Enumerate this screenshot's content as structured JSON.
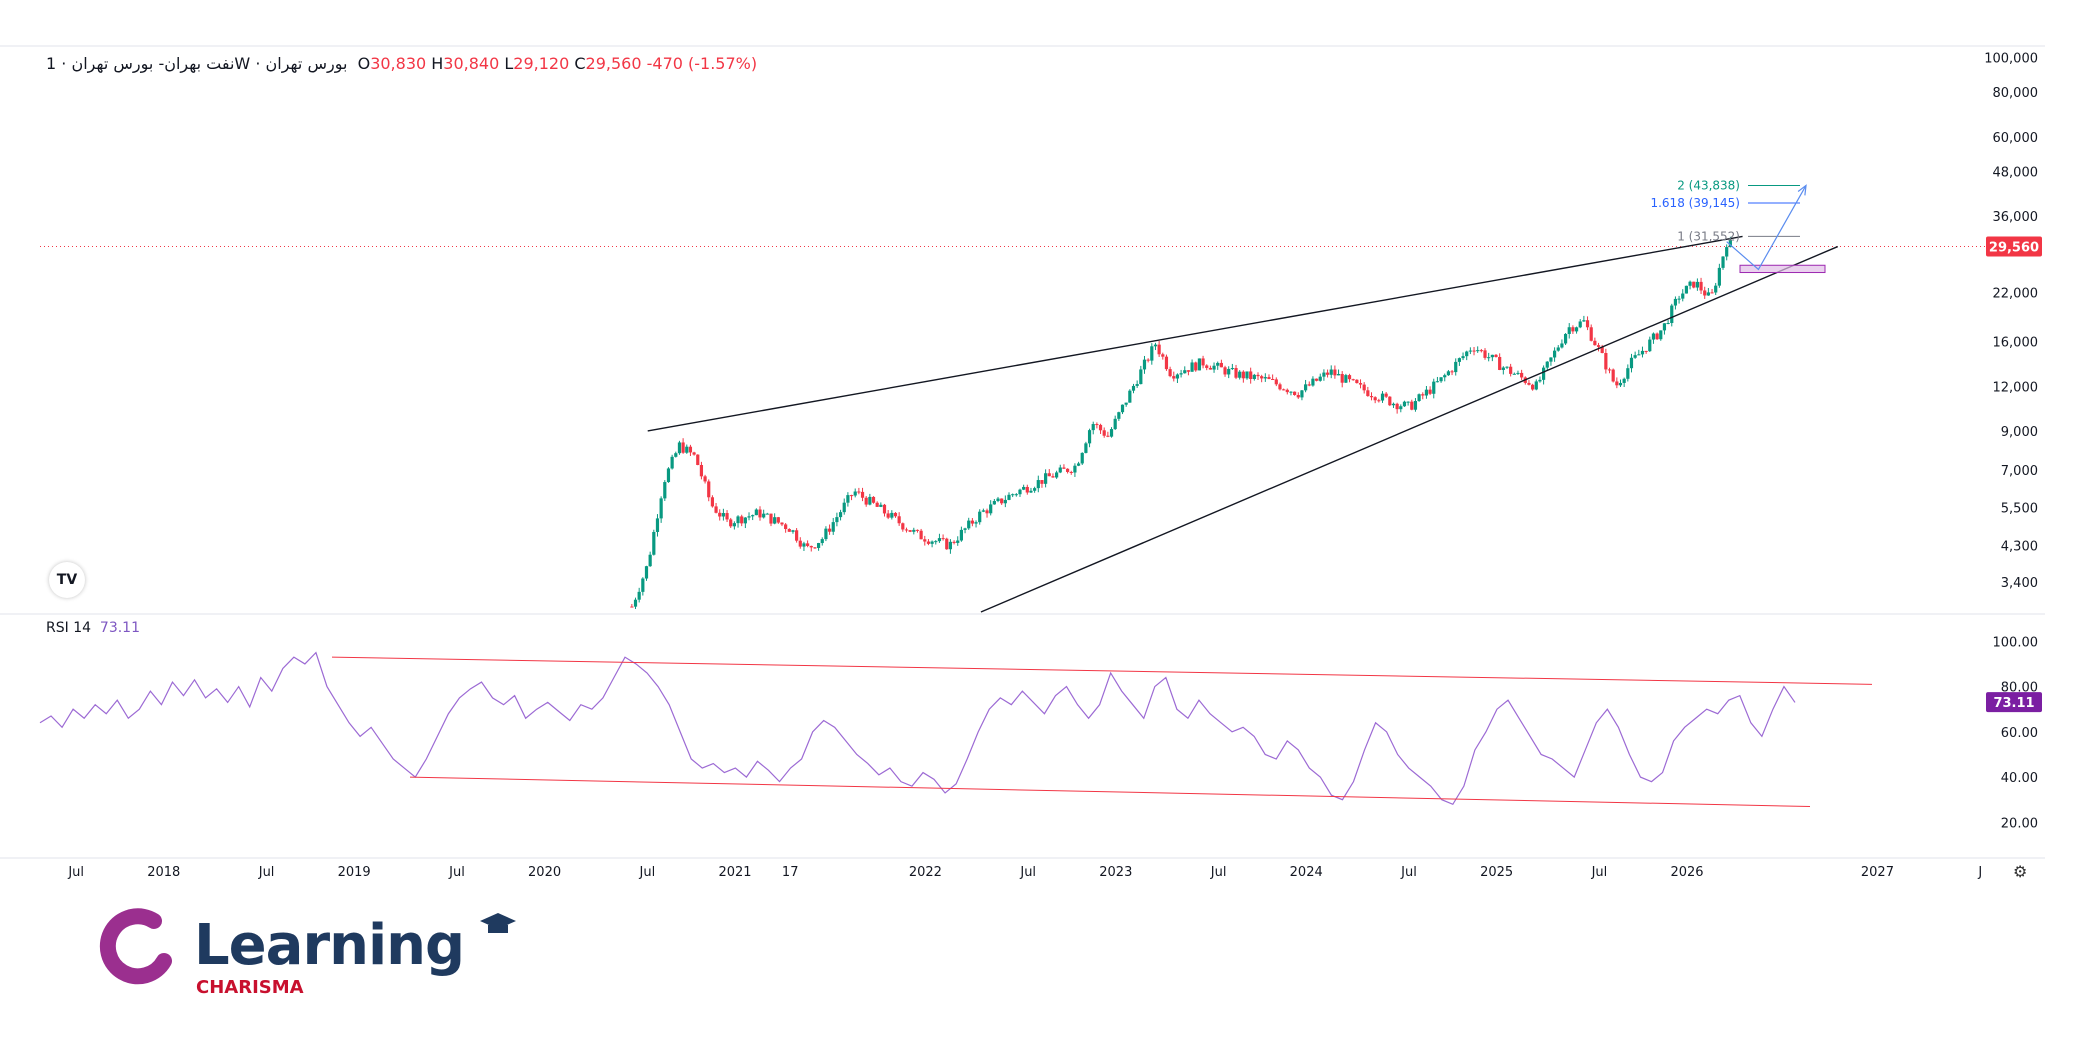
{
  "header": {
    "symbol": "نفت بهران- بورس تهران · 1W · بورس تهران",
    "open_label": "O",
    "open": "30,830",
    "high_label": "H",
    "high": "30,840",
    "low_label": "L",
    "low": "29,120",
    "close_label": "C",
    "close": "29,560",
    "change": "-470 (-1.57%)"
  },
  "rsi_header": {
    "label": "RSI 14",
    "value": "73.11"
  },
  "tv_logo": "TV",
  "settings_icon": "gear-icon",
  "brand": {
    "name": "Learning",
    "sub": "CHARISMA",
    "color": "#1f3a5f",
    "accent": "#9b2f8f",
    "sub_color": "#c8102e"
  },
  "chart_data": [
    {
      "type": "candlestick",
      "scale": "log",
      "ylim": [
        2800,
        105000
      ],
      "y_ticks": [
        "100,000",
        "80,000",
        "60,000",
        "48,000",
        "36,000",
        "22,000",
        "16,000",
        "12,000",
        "9,000",
        "7,000",
        "5,500",
        "4,300",
        "3,400"
      ],
      "last_price": "29,560",
      "last_price_color": "#f23645",
      "up_color": "#089981",
      "down_color": "#f23645",
      "price_path": [
        [
          "2020-06",
          2900
        ],
        [
          "2020-07",
          3800
        ],
        [
          "2020-08",
          6500
        ],
        [
          "2020-09",
          8200
        ],
        [
          "2020-10",
          7600
        ],
        [
          "2020-11",
          5600
        ],
        [
          "2020-12",
          5000
        ],
        [
          "2021-02",
          5300
        ],
        [
          "2021-04",
          4800
        ],
        [
          "2021-05",
          4200
        ],
        [
          "2021-06",
          4500
        ],
        [
          "2021-08",
          6100
        ],
        [
          "2021-10",
          5300
        ],
        [
          "2021-12",
          4600
        ],
        [
          "2022-02",
          4300
        ],
        [
          "2022-04",
          5300
        ],
        [
          "2022-06",
          6000
        ],
        [
          "2022-08",
          6600
        ],
        [
          "2022-10",
          7200
        ],
        [
          "2022-11",
          9500
        ],
        [
          "2022-12",
          8700
        ],
        [
          "2023-02",
          13000
        ],
        [
          "2023-03",
          15800
        ],
        [
          "2023-04",
          13000
        ],
        [
          "2023-06",
          14000
        ],
        [
          "2023-08",
          13000
        ],
        [
          "2023-10",
          12500
        ],
        [
          "2023-12",
          11500
        ],
        [
          "2024-02",
          13200
        ],
        [
          "2024-04",
          11800
        ],
        [
          "2024-06",
          10800
        ],
        [
          "2024-07",
          10500
        ],
        [
          "2024-09",
          12500
        ],
        [
          "2024-11",
          15600
        ],
        [
          "2025-01",
          13500
        ],
        [
          "2025-03",
          12000
        ],
        [
          "2025-05",
          17500
        ],
        [
          "2025-06",
          18200
        ],
        [
          "2025-07",
          15000
        ],
        [
          "2025-08",
          12000
        ],
        [
          "2025-09",
          14000
        ],
        [
          "2025-11",
          17500
        ],
        [
          "2025-12",
          21500
        ],
        [
          "2026-01",
          23500
        ],
        [
          "2026-02",
          21000
        ],
        [
          "2026-03",
          30500
        ],
        [
          "2026-03b",
          29560
        ]
      ],
      "upper_trendline": [
        [
          "2020-07",
          9000
        ],
        [
          "2026-04",
          31552
        ]
      ],
      "lower_trendline": [
        [
          "2022-04",
          2800
        ],
        [
          "2026-10",
          29560
        ]
      ],
      "fib_levels": [
        {
          "label": "1 (31,552)",
          "value": 31552,
          "color": "#787b86"
        },
        {
          "label": "1.618 (39,145)",
          "value": 39145,
          "color": "#2962ff"
        },
        {
          "label": "2 (43,838)",
          "value": 43838,
          "color": "#089981"
        }
      ],
      "support_zone": [
        25000,
        26200
      ],
      "projection": [
        [
          "2026-03",
          30500
        ],
        [
          "2026-05",
          25500
        ],
        [
          "2026-08",
          43838
        ]
      ]
    },
    {
      "type": "line",
      "name": "RSI 14",
      "color": "#9c6ad4",
      "ylim": [
        10,
        105
      ],
      "y_ticks": [
        "100.00",
        "80.00",
        "60.00",
        "40.00",
        "20.00"
      ],
      "last_value": "73.11",
      "values": [
        64,
        67,
        62,
        70,
        66,
        72,
        68,
        74,
        66,
        70,
        78,
        72,
        82,
        76,
        83,
        75,
        79,
        73,
        80,
        71,
        84,
        78,
        88,
        93,
        90,
        95,
        80,
        72,
        64,
        58,
        62,
        55,
        48,
        44,
        40,
        48,
        58,
        68,
        75,
        79,
        82,
        75,
        72,
        76,
        66,
        70,
        73,
        69,
        65,
        72,
        70,
        75,
        84,
        93,
        90,
        86,
        80,
        72,
        60,
        48,
        44,
        46,
        42,
        44,
        40,
        47,
        43,
        38,
        44,
        48,
        60,
        65,
        62,
        56,
        50,
        46,
        41,
        44,
        38,
        36,
        42,
        39,
        33,
        37,
        48,
        60,
        70,
        75,
        72,
        78,
        73,
        68,
        76,
        80,
        72,
        66,
        72,
        86,
        78,
        72,
        66,
        80,
        84,
        70,
        66,
        74,
        68,
        64,
        60,
        62,
        58,
        50,
        48,
        56,
        52,
        44,
        40,
        32,
        30,
        38,
        52,
        64,
        60,
        50,
        44,
        40,
        36,
        30,
        28,
        36,
        52,
        60,
        70,
        74,
        66,
        58,
        50,
        48,
        44,
        40,
        52,
        64,
        70,
        62,
        50,
        40,
        38,
        42,
        56,
        62,
        66,
        70,
        68,
        74,
        76,
        64,
        58,
        70,
        80,
        73
      ]
    }
  ],
  "x_axis": [
    "Jul",
    "2018",
    "Jul",
    "2019",
    "Jul",
    "2020",
    "Jul",
    "2021",
    "17",
    "2022",
    "Jul",
    "2023",
    "Jul",
    "2024",
    "Jul",
    "2025",
    "Jul",
    "2026",
    "2027",
    "J"
  ]
}
